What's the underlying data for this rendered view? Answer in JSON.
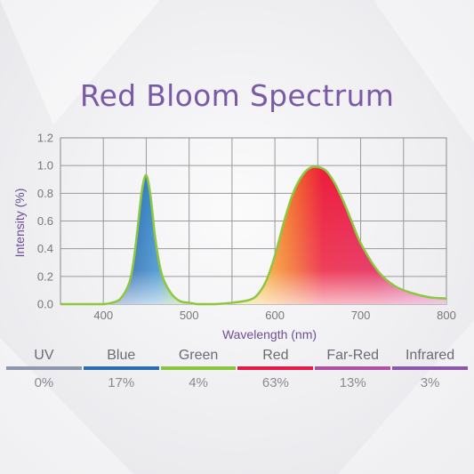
{
  "title": "Red Bloom Spectrum",
  "chart_data": {
    "type": "area",
    "title": "Red Bloom Spectrum",
    "xlabel": "Wavelength (nm)",
    "ylabel": "Intensity (%)",
    "xlim": [
      350,
      800
    ],
    "ylim": [
      0,
      1.2
    ],
    "xticks": [
      "400",
      "500",
      "600",
      "700",
      "800"
    ],
    "yticks": [
      "0.0",
      "0.2",
      "0.4",
      "0.6",
      "0.8",
      "1.0",
      "1.2"
    ],
    "grid": true,
    "series": [
      {
        "x": [
          350,
          380,
          400,
          410,
          420,
          430,
          435,
          440,
          445,
          450,
          455,
          460,
          465,
          470,
          480,
          490,
          500,
          510,
          530,
          550,
          570,
          580,
          590,
          600,
          610,
          620,
          630,
          640,
          650,
          660,
          670,
          680,
          690,
          700,
          720,
          740,
          760,
          780,
          800
        ],
        "y": [
          0,
          0,
          0,
          0.01,
          0.04,
          0.15,
          0.3,
          0.55,
          0.82,
          0.93,
          0.78,
          0.5,
          0.3,
          0.18,
          0.07,
          0.02,
          0.01,
          0,
          0,
          0.01,
          0.03,
          0.07,
          0.17,
          0.35,
          0.58,
          0.78,
          0.91,
          0.98,
          0.99,
          0.96,
          0.87,
          0.74,
          0.59,
          0.44,
          0.24,
          0.13,
          0.08,
          0.05,
          0.04
        ]
      }
    ]
  },
  "bands": [
    {
      "name": "UV",
      "percent": "0%",
      "color": "#8e98ad"
    },
    {
      "name": "Blue",
      "percent": "17%",
      "color": "#2b6cb3"
    },
    {
      "name": "Green",
      "percent": "4%",
      "color": "#8bc53f"
    },
    {
      "name": "Red",
      "percent": "63%",
      "color": "#e7194a"
    },
    {
      "name": "Far-Red",
      "percent": "13%",
      "color": "#b14fa3"
    },
    {
      "name": "Infrared",
      "percent": "3%",
      "color": "#8c58ad"
    }
  ]
}
